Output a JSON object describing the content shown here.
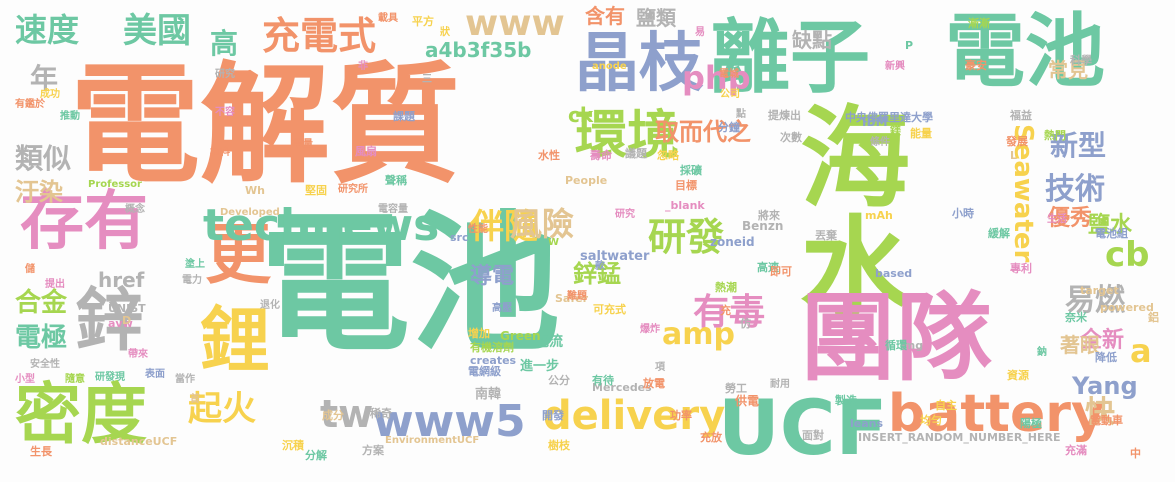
{
  "palette": {
    "teal": "#6dc8a3",
    "orange": "#f2936a",
    "blue": "#8ea0cc",
    "pink": "#e58dc0",
    "green": "#a6d650",
    "yellow": "#f7d24e",
    "tan": "#e3c592",
    "gray": "#b3b3b3"
  },
  "words": [
    "電解質",
    "電池",
    "海水",
    "團隊",
    "電池",
    "離子",
    "晶枝",
    "環境",
    "存有",
    "鋅",
    "更",
    "鋰",
    "密度",
    "UCF",
    "battery",
    "technews",
    "www5",
    "delivery",
    "研發",
    "有毒",
    "充電式",
    "美國",
    "速度",
    "www",
    "php",
    "amp",
    "伴隨",
    "風險",
    "起火",
    "tw",
    "cb",
    "易燃",
    "技術",
    "新型",
    "Seawater",
    "a",
    "Yang",
    "快",
    "鋅錳",
    "導電",
    "合金",
    "電極",
    "類似",
    "汙染",
    "高",
    "年",
    "取而代之",
    "優秀",
    "鹽水",
    "a4b3f35b",
    "含有",
    "鹽類",
    "缺點",
    "常見",
    "全新",
    "著眼",
    "href",
    "ck",
    "電流",
    "saltwater",
    "Green",
    "進一步",
    "南韓",
    "Mercedes",
    "供電",
    "Benzn",
    "zoneid",
    "IBM",
    "中央佛羅里達大學",
    "研究所",
    "Developed",
    "Professor",
    "People",
    "Safer",
    "creates",
    "UNIST",
    "avw",
    "EnvironmentUCF",
    "distanceUCF",
    "INSERT_RANDOM_NUMBER_HERE",
    "target",
    "powered",
    "based",
    "leans",
    "_blank",
    "src",
    "Wh",
    "anode",
    "img",
    "D",
    "面對",
    "製造",
    "電動車",
    "自主",
    "陽極",
    "均勻",
    "充滿",
    "中",
    "方案",
    "分解",
    "生長",
    "沉積",
    "功率",
    "充放",
    "開發",
    "稀奇",
    "樹枝",
    "成分",
    "可充式",
    "難題",
    "熱潮",
    "高壓",
    "增加",
    "有機溶劑",
    "電網級",
    "高速",
    "公分",
    "有待",
    "放電",
    "勞工",
    "耐用",
    "資源",
    "奈米",
    "鋁",
    "生活",
    "將來",
    "次數",
    "即可",
    "分鐘",
    "熱門",
    "豪安",
    "科學",
    "福益",
    "發展",
    "能量",
    "提煉出",
    "採礦",
    "目標",
    "忽略",
    "議題",
    "壽命",
    "水性",
    "不容",
    "材料",
    "概念",
    "研究",
    "推動",
    "成功",
    "有鑑於",
    "儲",
    "提出",
    "電力",
    "退化",
    "塗上",
    "小型",
    "安全性",
    "隨意",
    "研發現",
    "表面",
    "當作",
    "帶來",
    "首",
    "款",
    "爆炸",
    "項",
    "電量",
    "點",
    "循環",
    "鈉",
    "降低",
    "專利",
    "丟棄",
    "緩解",
    "電池組",
    "小時",
    "電容量",
    "風扇",
    "堅固",
    "聲稱",
    "課題",
    "非",
    "三",
    "平方",
    "狀",
    "漸漸",
    "載具",
    "易",
    "電城",
    "公司",
    "新興",
    "條件",
    "性能",
    "研究",
    "W",
    "充",
    "仿",
    "mAh",
    "P",
    "L",
    "鎂"
  ]
}
